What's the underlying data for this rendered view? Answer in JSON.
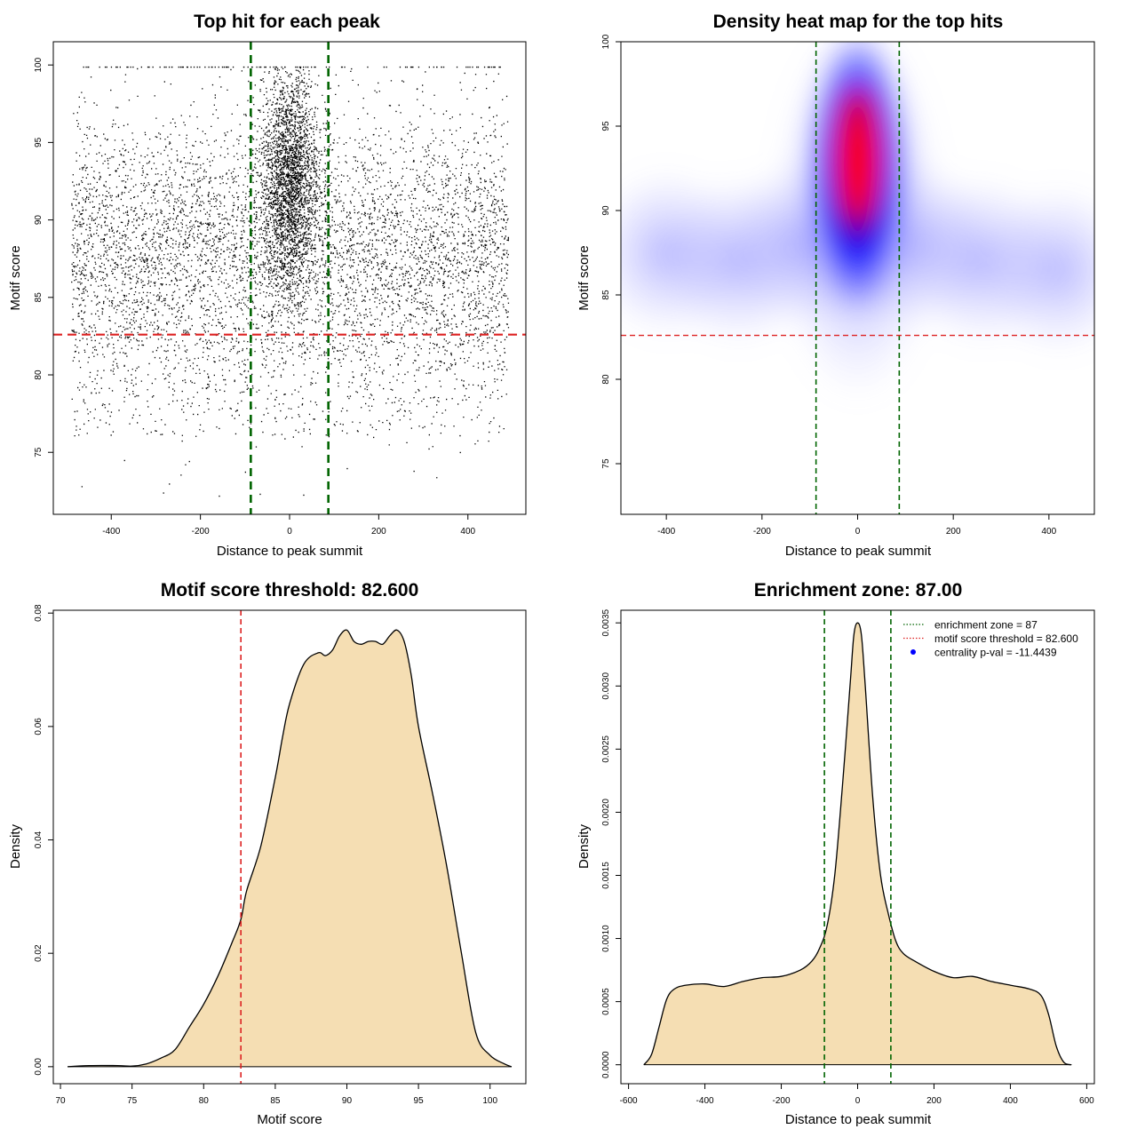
{
  "chart_data": [
    {
      "type": "scatter",
      "title": "Top hit for each peak",
      "xlabel": "Distance to peak summit",
      "ylabel": "Motif score",
      "xlim": [
        -530,
        530
      ],
      "ylim": [
        71,
        101.5
      ],
      "xticks": [
        -400,
        -200,
        0,
        200,
        400
      ],
      "yticks": [
        75,
        80,
        85,
        90,
        95,
        100
      ],
      "colors": {
        "points": "#000000",
        "vline": "#006400",
        "hline": "#dd2222"
      },
      "vlines": [
        -87,
        87
      ],
      "hline": 82.6,
      "grid": false
    },
    {
      "type": "heatmap",
      "title": "Density heat map for the top hits",
      "xlabel": "Distance to peak summit",
      "ylabel": "Motif score",
      "xlim": [
        -495,
        495
      ],
      "ylim": [
        72,
        100
      ],
      "xticks": [
        -400,
        -200,
        0,
        200,
        400
      ],
      "yticks": [
        75,
        80,
        85,
        90,
        95,
        100
      ],
      "colors": {
        "low": "#ffffff",
        "mid": "#0000ff",
        "high": "#ff0000",
        "vline": "#006400",
        "hline": "#dd2222"
      },
      "density_peak": {
        "x": 0,
        "y": 93.5
      },
      "vlines": [
        -87,
        87
      ],
      "hline": 82.6,
      "grid": false
    },
    {
      "type": "area",
      "title": "Motif score threshold: 82.600",
      "xlabel": "Motif score",
      "ylabel": "Density",
      "xlim": [
        69.5,
        102.5
      ],
      "ylim": [
        -0.003,
        0.0805
      ],
      "xticks": [
        70,
        75,
        80,
        85,
        90,
        95,
        100
      ],
      "yticks": [
        0.0,
        0.02,
        0.04,
        0.06,
        0.08
      ],
      "ytick_labels": [
        "0.00",
        "0.02",
        "0.04",
        "0.06",
        "0.08"
      ],
      "colors": {
        "fill": "#f5deb3",
        "line": "#000000",
        "vline": "#dd2222"
      },
      "vline": 82.6,
      "x": [
        70.5,
        72,
        74,
        75,
        76,
        77,
        78,
        79,
        80,
        81,
        82,
        82.6,
        83,
        84,
        85,
        85.5,
        86,
        87,
        88,
        88.5,
        89,
        89.5,
        90,
        90.5,
        91,
        91.5,
        92,
        92.5,
        93,
        93.5,
        94,
        94.5,
        95,
        96,
        97,
        98,
        99,
        100,
        101,
        101.5
      ],
      "y": [
        0.0,
        0.0002,
        0.0002,
        0.0001,
        0.0005,
        0.0015,
        0.003,
        0.007,
        0.011,
        0.016,
        0.022,
        0.026,
        0.031,
        0.039,
        0.051,
        0.058,
        0.064,
        0.071,
        0.073,
        0.0725,
        0.0735,
        0.076,
        0.077,
        0.075,
        0.0745,
        0.075,
        0.075,
        0.0745,
        0.076,
        0.077,
        0.075,
        0.069,
        0.06,
        0.048,
        0.035,
        0.02,
        0.006,
        0.002,
        0.0005,
        0.0
      ]
    },
    {
      "type": "area",
      "title": "Enrichment zone: 87.00",
      "xlabel": "Distance to peak summit",
      "ylabel": "Density",
      "xlim": [
        -620,
        620
      ],
      "ylim": [
        -0.00015,
        0.0036
      ],
      "xticks": [
        -600,
        -400,
        -200,
        0,
        200,
        400,
        600
      ],
      "yticks": [
        0.0,
        0.0005,
        0.001,
        0.0015,
        0.002,
        0.0025,
        0.003,
        0.0035
      ],
      "ytick_labels": [
        "0.0000",
        "0.0005",
        "0.0010",
        "0.0015",
        "0.0020",
        "0.0025",
        "0.0030",
        "0.0035"
      ],
      "colors": {
        "fill": "#f5deb3",
        "line": "#000000",
        "vline": "#006400",
        "legend_threshold": "#dd2222",
        "legend_point": "#0000ff"
      },
      "vlines": [
        -87,
        87
      ],
      "x": [
        -560,
        -540,
        -520,
        -500,
        -480,
        -450,
        -400,
        -350,
        -300,
        -250,
        -200,
        -150,
        -120,
        -100,
        -80,
        -60,
        -40,
        -20,
        -10,
        0,
        10,
        20,
        40,
        60,
        80,
        100,
        120,
        150,
        200,
        250,
        300,
        350,
        400,
        450,
        480,
        500,
        520,
        540,
        560
      ],
      "y": [
        0.0,
        8e-05,
        0.0003,
        0.00052,
        0.0006,
        0.00063,
        0.00064,
        0.00062,
        0.00066,
        0.00069,
        0.0007,
        0.00075,
        0.00082,
        0.00092,
        0.0011,
        0.0015,
        0.0022,
        0.003,
        0.0034,
        0.0035,
        0.0034,
        0.003,
        0.0021,
        0.0015,
        0.0012,
        0.00098,
        0.00088,
        0.00082,
        0.00074,
        0.00069,
        0.0007,
        0.00066,
        0.00063,
        0.0006,
        0.00055,
        0.0004,
        0.00015,
        2e-05,
        0.0
      ],
      "legend": {
        "position": "top-right",
        "entries": [
          {
            "label": "enrichment zone = 87",
            "symbol": "dotted-line",
            "color": "#006400"
          },
          {
            "label": "motif score threshold = 82.600",
            "symbol": "dotted-line",
            "color": "#dd2222"
          },
          {
            "label": "centrality p-val = -11.4439",
            "symbol": "point",
            "color": "#0000ff"
          }
        ]
      }
    }
  ]
}
